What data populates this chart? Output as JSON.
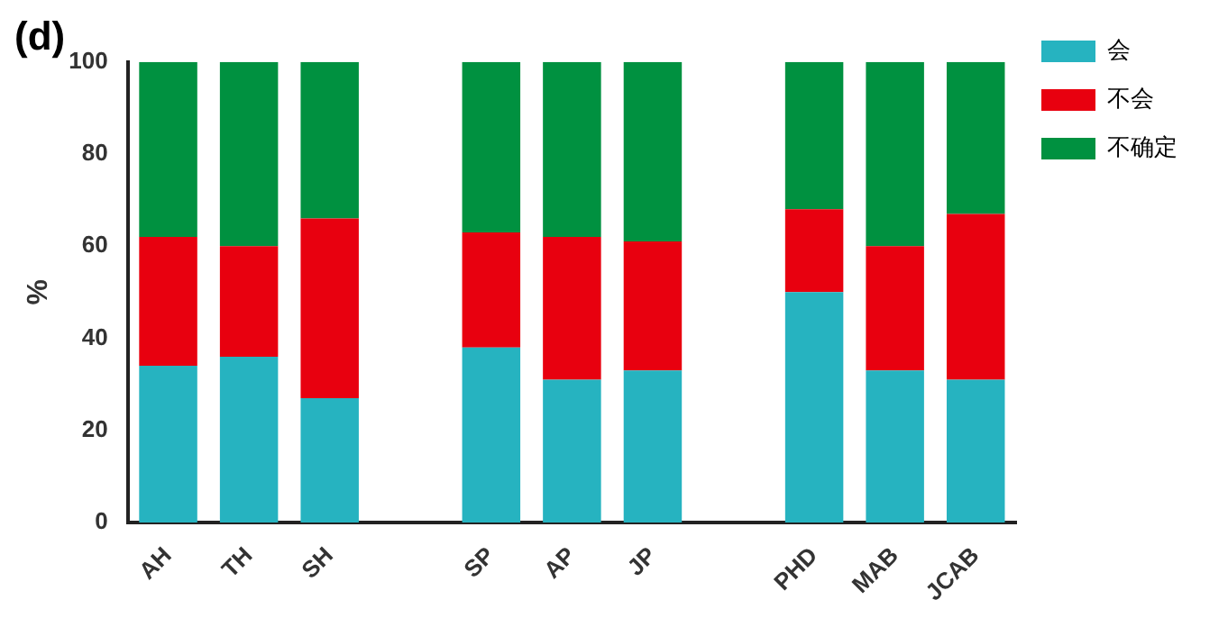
{
  "chart_data": {
    "type": "bar",
    "title": "(d)",
    "ylabel": "%",
    "stacked": true,
    "legend": "right",
    "grid": false,
    "categories": [
      "AH",
      "TH",
      "SH",
      null,
      "SP",
      "AP",
      "JP",
      null,
      "PHD",
      "MAB",
      "JCAB"
    ],
    "series": [
      {
        "name": "会",
        "color": "#26b3c0",
        "values": [
          34,
          36,
          27,
          null,
          38,
          31,
          33,
          null,
          50,
          33,
          31
        ]
      },
      {
        "name": "不会",
        "color": "#e8000f",
        "values": [
          28,
          24,
          39,
          null,
          25,
          31,
          28,
          null,
          18,
          27,
          36
        ]
      },
      {
        "name": "不确定",
        "color": "#009140",
        "values": [
          38,
          40,
          34,
          null,
          37,
          38,
          39,
          null,
          32,
          40,
          33
        ]
      }
    ],
    "ylim": [
      0,
      100
    ],
    "yticks": [
      0,
      20,
      40,
      60,
      80,
      100
    ]
  }
}
